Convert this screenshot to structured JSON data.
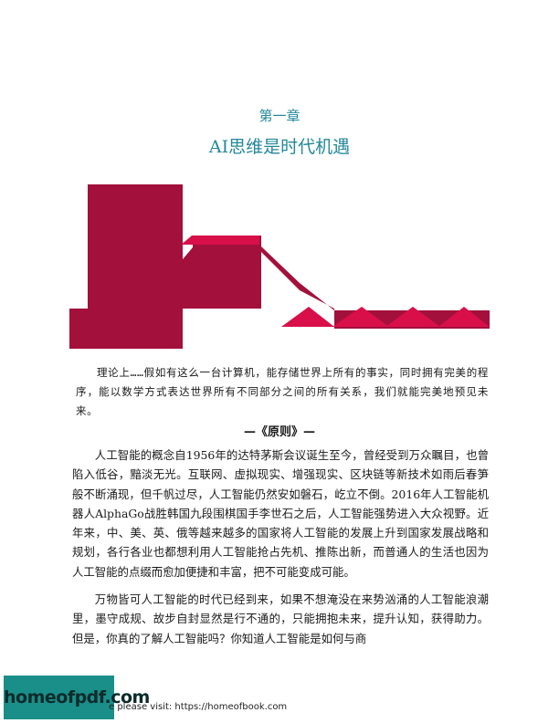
{
  "chapter": {
    "number": "第一章",
    "title": "AI思维是时代机遇"
  },
  "banner": {
    "primary_color": "#a3103c",
    "accent_color": "#d90f4a"
  },
  "quote": {
    "text": "理论上……假如有这么一台计算机，能存储世界上所有的事实，同时拥有完美的程序，能以数学方式表达世界所有不同部分之间的所有关系，我们就能完美地预见未来。",
    "source": "—《原则》—"
  },
  "body": {
    "paragraphs": [
      "人工智能的概念自1956年的达特茅斯会议诞生至今，曾经受到万众瞩目，也曾陷入低谷，黯淡无光。互联网、虚拟现实、增强现实、区块链等新技术如雨后春笋般不断涌现，但千帆过尽，人工智能仍然安如磐石，屹立不倒。2016年人工智能机器人AlphaGo战胜韩国九段围棋国手李世石之后，人工智能强势进入大众视野。近年来，中、美、英、俄等越来越多的国家将人工智能的发展上升到国家发展战略和规划，各行各业也都想利用人工智能抢占先机、推陈出新，而普通人的生活也因为人工智能的点缀而愈加便捷和丰富，把不可能变成可能。",
      "万物皆可人工智能的时代已经到来，如果不想淹没在来势汹涌的人工智能浪潮里，墨守成规、故步自封显然是行不通的，只能拥抱未来，提升认知，获得助力。但是，你真的了解人工智能吗？你知道人工智能是如何与商"
    ]
  },
  "footer": {
    "logo": "homeofpdf.com",
    "note": "e please visit: https://homeofbook.com"
  }
}
